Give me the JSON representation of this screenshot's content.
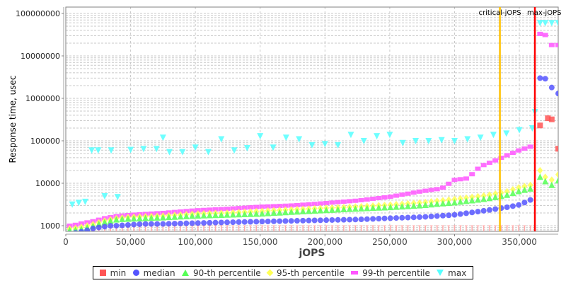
{
  "chart_data": {
    "type": "scatter",
    "title": "",
    "xlabel": "jOPS",
    "ylabel": "Response time, usec",
    "yscale": "log",
    "xlim": [
      0,
      380000
    ],
    "ylim": [
      700,
      130000000
    ],
    "x_ticks": [
      "0",
      "50,000",
      "100,000",
      "150,000",
      "200,000",
      "250,000",
      "300,000",
      "350,000"
    ],
    "y_ticks": [
      "1000",
      "10000",
      "100000",
      "1000000",
      "10000000",
      "100000000"
    ],
    "grid": true,
    "legend_position": "bottom",
    "legend": [
      "min",
      "median",
      "90-th percentile",
      "95-th percentile",
      "99-th percentile",
      "max"
    ],
    "annotations": [
      {
        "label": "critical-jOPS",
        "x": 335000,
        "color": "#ffc000"
      },
      {
        "label": "max-jOPS",
        "x": 362000,
        "color": "#ff0000"
      }
    ],
    "series": [
      {
        "name": "min",
        "color": "#ff5555",
        "marker": "square",
        "x": [
          5000,
          50000,
          100000,
          150000,
          200000,
          250000,
          300000,
          350000,
          366000,
          372000,
          375000,
          380000
        ],
        "values": [
          1000,
          1000,
          1000,
          1000,
          1000,
          1000,
          1000,
          1000,
          230000,
          340000,
          320000,
          65000
        ]
      },
      {
        "name": "median",
        "color": "#5555ff",
        "marker": "circle",
        "x": [
          5000,
          10000,
          15000,
          20000,
          25000,
          30000,
          35000,
          40000,
          50000,
          60000,
          75000,
          100000,
          125000,
          150000,
          175000,
          200000,
          225000,
          250000,
          275000,
          300000,
          325000,
          340000,
          350000,
          362000,
          366000,
          370000,
          375000,
          380000
        ],
        "values": [
          650,
          700,
          750,
          850,
          900,
          950,
          1000,
          1000,
          1050,
          1100,
          1100,
          1150,
          1200,
          1250,
          1300,
          1350,
          1400,
          1500,
          1600,
          1800,
          2300,
          2700,
          3100,
          4500,
          3000000,
          2900000,
          1800000,
          1300000
        ]
      },
      {
        "name": "90-th percentile",
        "color": "#55ff55",
        "marker": "triangle-up",
        "x": [
          5000,
          10000,
          20000,
          30000,
          40000,
          50000,
          75000,
          100000,
          125000,
          150000,
          175000,
          200000,
          225000,
          250000,
          275000,
          300000,
          325000,
          340000,
          350000,
          362000,
          366000,
          370000,
          375000,
          380000
        ],
        "values": [
          780,
          800,
          950,
          1200,
          1400,
          1450,
          1550,
          1700,
          1800,
          1900,
          2100,
          2300,
          2500,
          2700,
          3000,
          3500,
          4300,
          5200,
          6500,
          7800,
          14000,
          11000,
          9000,
          11500
        ]
      },
      {
        "name": "95-th percentile",
        "color": "#ffff55",
        "marker": "diamond",
        "x": [
          5000,
          10000,
          20000,
          30000,
          40000,
          50000,
          75000,
          100000,
          125000,
          150000,
          175000,
          200000,
          225000,
          250000,
          275000,
          300000,
          325000,
          340000,
          350000,
          362000,
          366000,
          370000,
          375000,
          380000
        ],
        "values": [
          850,
          900,
          1050,
          1300,
          1500,
          1600,
          1700,
          1900,
          2000,
          2200,
          2400,
          2600,
          2800,
          3100,
          3500,
          4200,
          5200,
          6300,
          8000,
          9500,
          20000,
          14000,
          12000,
          16000
        ]
      },
      {
        "name": "99-th percentile",
        "color": "#ff55ff",
        "marker": "rect",
        "x": [
          5000,
          10000,
          20000,
          30000,
          40000,
          50000,
          75000,
          100000,
          125000,
          150000,
          175000,
          200000,
          225000,
          250000,
          275000,
          290000,
          300000,
          310000,
          320000,
          330000,
          340000,
          350000,
          360000,
          362000,
          366000,
          370000,
          375000,
          380000
        ],
        "values": [
          1000,
          1100,
          1250,
          1500,
          1700,
          1800,
          2000,
          2300,
          2500,
          2800,
          3000,
          3400,
          3900,
          4800,
          6500,
          7500,
          12000,
          13000,
          25000,
          33000,
          45000,
          60000,
          75000,
          140000,
          33000000,
          31000000,
          18000000,
          18000000
        ]
      },
      {
        "name": "max",
        "color": "#55ffff",
        "marker": "triangle-down",
        "x": [
          5000,
          10000,
          15000,
          20000,
          25000,
          30000,
          35000,
          40000,
          50000,
          60000,
          70000,
          75000,
          80000,
          90000,
          100000,
          110000,
          120000,
          130000,
          140000,
          150000,
          160000,
          170000,
          180000,
          190000,
          200000,
          210000,
          220000,
          230000,
          240000,
          250000,
          260000,
          270000,
          280000,
          290000,
          300000,
          310000,
          320000,
          330000,
          340000,
          350000,
          360000,
          362000,
          366000,
          370000,
          375000,
          380000
        ],
        "values": [
          3200,
          3500,
          3700,
          60000,
          60000,
          5000,
          60000,
          4800,
          62000,
          65000,
          65000,
          120000,
          55000,
          55000,
          70000,
          55000,
          110000,
          60000,
          68000,
          130000,
          70000,
          120000,
          110000,
          80000,
          85000,
          80000,
          140000,
          100000,
          130000,
          140000,
          90000,
          100000,
          100000,
          105000,
          100000,
          110000,
          120000,
          140000,
          150000,
          180000,
          200000,
          480000,
          60000000,
          60000000,
          60000000,
          60000000
        ]
      }
    ]
  },
  "legend_labels": {
    "min": "min",
    "median": "median",
    "p90": "90-th percentile",
    "p95": "95-th percentile",
    "p99": "99-th percentile",
    "max": "max"
  }
}
